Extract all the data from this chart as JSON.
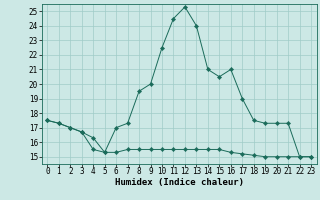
{
  "xlabel": "Humidex (Indice chaleur)",
  "ylabel": "",
  "xlim": [
    -0.5,
    23.5
  ],
  "ylim": [
    14.5,
    25.5
  ],
  "yticks": [
    15,
    16,
    17,
    18,
    19,
    20,
    21,
    22,
    23,
    24,
    25
  ],
  "xticks": [
    0,
    1,
    2,
    3,
    4,
    5,
    6,
    7,
    8,
    9,
    10,
    11,
    12,
    13,
    14,
    15,
    16,
    17,
    18,
    19,
    20,
    21,
    22,
    23
  ],
  "line1_x": [
    0,
    1,
    2,
    3,
    4,
    5,
    6,
    7,
    8,
    9,
    10,
    11,
    12,
    13,
    14,
    15,
    16,
    17,
    18,
    19,
    20,
    21,
    22,
    23
  ],
  "line1_y": [
    17.5,
    17.3,
    17.0,
    16.7,
    15.5,
    15.3,
    15.3,
    15.5,
    15.5,
    15.5,
    15.5,
    15.5,
    15.5,
    15.5,
    15.5,
    15.5,
    15.3,
    15.2,
    15.1,
    15.0,
    15.0,
    15.0,
    15.0,
    15.0
  ],
  "line2_x": [
    0,
    1,
    2,
    3,
    4,
    5,
    6,
    7,
    8,
    9,
    10,
    11,
    12,
    13,
    14,
    15,
    16,
    17,
    18,
    19,
    20,
    21,
    22,
    23
  ],
  "line2_y": [
    17.5,
    17.3,
    17.0,
    16.7,
    16.3,
    15.3,
    17.0,
    17.3,
    19.5,
    20.0,
    22.5,
    24.5,
    25.3,
    24.0,
    21.0,
    20.5,
    21.0,
    19.0,
    17.5,
    17.3,
    17.3,
    17.3,
    15.0,
    15.0
  ],
  "line_color": "#1a6b5a",
  "bg_color": "#cce8e5",
  "grid_color": "#a0ccc8",
  "marker": "D",
  "marker_size": 2.2,
  "label_fontsize": 6.5,
  "tick_fontsize": 5.5
}
